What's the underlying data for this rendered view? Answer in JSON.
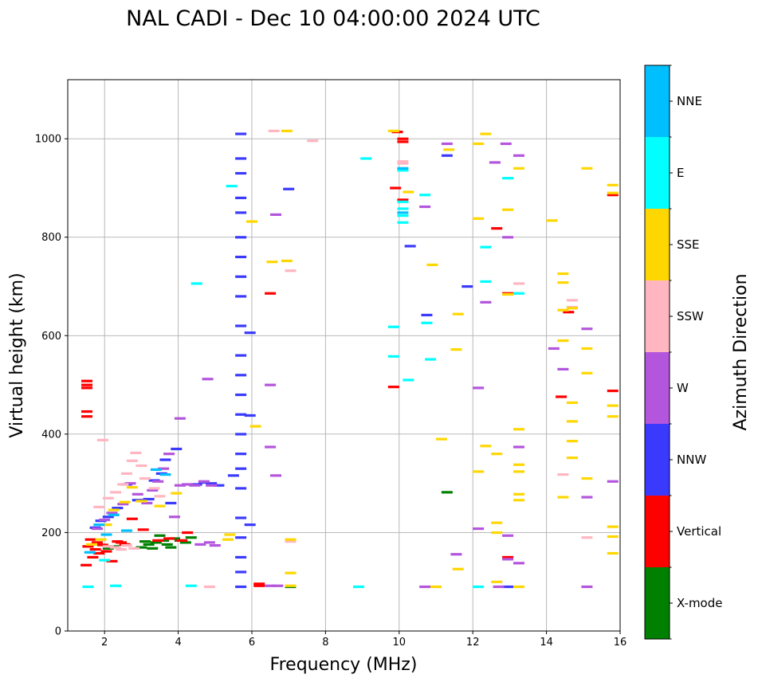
{
  "chart_data": {
    "type": "scatter",
    "title": "NAL CADI - Dec 10 04:00:00 2024 UTC",
    "xlabel": "Frequency (MHz)",
    "ylabel": "Virtual height (km)",
    "xlim": [
      1,
      16
    ],
    "ylim": [
      0,
      1120
    ],
    "xticks": [
      2,
      4,
      6,
      8,
      10,
      12,
      14,
      16
    ],
    "yticks": [
      0,
      200,
      400,
      600,
      800,
      1000
    ],
    "grid": true,
    "colorbar": {
      "label": "Azimuth Direction",
      "categories": [
        {
          "name": "X-mode",
          "color": "#008000"
        },
        {
          "name": "Vertical",
          "color": "#ff0000"
        },
        {
          "name": "NNW",
          "color": "#3a3aff"
        },
        {
          "name": "W",
          "color": "#b455dd"
        },
        {
          "name": "SSW",
          "color": "#ffb6c1"
        },
        {
          "name": "SSE",
          "color": "#ffd700"
        },
        {
          "name": "E",
          "color": "#00ffff"
        },
        {
          "name": "NNE",
          "color": "#00bfff"
        }
      ]
    },
    "series": [
      {
        "name": "X-mode",
        "points": [
          [
            2.1,
            168
          ],
          [
            2.25,
            172
          ],
          [
            3.0,
            170
          ],
          [
            3.1,
            182
          ],
          [
            3.2,
            176
          ],
          [
            3.3,
            168
          ],
          [
            3.4,
            180
          ],
          [
            3.5,
            194
          ],
          [
            3.6,
            184
          ],
          [
            3.7,
            176
          ],
          [
            3.8,
            170
          ],
          [
            3.9,
            188
          ],
          [
            4.05,
            184
          ],
          [
            4.2,
            180
          ],
          [
            4.35,
            190
          ],
          [
            11.3,
            282
          ],
          [
            7.05,
            90
          ]
        ]
      },
      {
        "name": "Vertical",
        "points": [
          [
            1.5,
            134
          ],
          [
            1.55,
            172
          ],
          [
            1.62,
            186
          ],
          [
            1.68,
            150
          ],
          [
            1.75,
            166
          ],
          [
            1.8,
            180
          ],
          [
            1.85,
            158
          ],
          [
            1.95,
            175
          ],
          [
            2.05,
            162
          ],
          [
            2.2,
            142
          ],
          [
            2.35,
            182
          ],
          [
            2.45,
            180
          ],
          [
            2.55,
            176
          ],
          [
            2.75,
            228
          ],
          [
            3.05,
            206
          ],
          [
            3.45,
            184
          ],
          [
            3.75,
            188
          ],
          [
            4.1,
            184
          ],
          [
            4.25,
            200
          ],
          [
            1.52,
            436
          ],
          [
            1.52,
            446
          ],
          [
            1.52,
            494
          ],
          [
            1.52,
            500
          ],
          [
            1.52,
            508
          ],
          [
            6.2,
            92
          ],
          [
            6.2,
            96
          ],
          [
            6.5,
            686
          ],
          [
            9.85,
            496
          ],
          [
            9.9,
            900
          ],
          [
            9.95,
            1014
          ],
          [
            10.1,
            1000
          ],
          [
            10.1,
            994
          ],
          [
            10.1,
            876
          ],
          [
            15.8,
            488
          ],
          [
            15.8,
            886
          ],
          [
            14.4,
            476
          ],
          [
            14.6,
            648
          ],
          [
            12.95,
            686
          ],
          [
            12.95,
            150
          ],
          [
            12.65,
            818
          ]
        ]
      },
      {
        "name": "NNW",
        "points": [
          [
            5.7,
            90
          ],
          [
            5.7,
            120
          ],
          [
            5.7,
            150
          ],
          [
            5.7,
            190
          ],
          [
            5.7,
            230
          ],
          [
            5.7,
            290
          ],
          [
            5.7,
            330
          ],
          [
            5.7,
            360
          ],
          [
            5.7,
            400
          ],
          [
            5.7,
            440
          ],
          [
            5.7,
            480
          ],
          [
            5.7,
            520
          ],
          [
            5.7,
            560
          ],
          [
            5.7,
            620
          ],
          [
            5.7,
            680
          ],
          [
            5.7,
            720
          ],
          [
            5.7,
            760
          ],
          [
            5.7,
            800
          ],
          [
            5.7,
            850
          ],
          [
            5.7,
            880
          ],
          [
            5.7,
            930
          ],
          [
            5.7,
            960
          ],
          [
            5.7,
            1010
          ],
          [
            5.5,
            316
          ],
          [
            5.95,
            216
          ],
          [
            5.95,
            438
          ],
          [
            5.95,
            606
          ],
          [
            7.0,
            898
          ],
          [
            10.3,
            782
          ],
          [
            10.75,
            642
          ],
          [
            11.3,
            966
          ],
          [
            11.85,
            700
          ],
          [
            12.95,
            90
          ],
          [
            1.75,
            210
          ],
          [
            1.9,
            224
          ],
          [
            2.1,
            232
          ],
          [
            2.35,
            250
          ],
          [
            2.6,
            298
          ],
          [
            2.9,
            266
          ],
          [
            3.2,
            268
          ],
          [
            3.35,
            306
          ],
          [
            3.55,
            320
          ],
          [
            3.65,
            348
          ],
          [
            3.8,
            260
          ],
          [
            3.95,
            370
          ],
          [
            4.5,
            298
          ],
          [
            4.7,
            302
          ],
          [
            4.9,
            300
          ],
          [
            5.1,
            296
          ]
        ]
      },
      {
        "name": "W",
        "points": [
          [
            1.8,
            208
          ],
          [
            2.0,
            226
          ],
          [
            2.2,
            240
          ],
          [
            2.5,
            258
          ],
          [
            2.7,
            300
          ],
          [
            2.9,
            278
          ],
          [
            3.15,
            260
          ],
          [
            3.3,
            286
          ],
          [
            3.45,
            304
          ],
          [
            3.6,
            330
          ],
          [
            3.75,
            360
          ],
          [
            3.9,
            232
          ],
          [
            4.05,
            296
          ],
          [
            4.25,
            298
          ],
          [
            4.45,
            296
          ],
          [
            4.7,
            304
          ],
          [
            4.9,
            296
          ],
          [
            4.6,
            176
          ],
          [
            4.85,
            180
          ],
          [
            5.0,
            174
          ],
          [
            4.05,
            432
          ],
          [
            4.8,
            512
          ],
          [
            6.5,
            500
          ],
          [
            6.5,
            374
          ],
          [
            6.65,
            316
          ],
          [
            6.65,
            846
          ],
          [
            6.5,
            92
          ],
          [
            6.7,
            92
          ],
          [
            10.7,
            90
          ],
          [
            10.7,
            862
          ],
          [
            11.3,
            990
          ],
          [
            11.55,
            156
          ],
          [
            12.15,
            208
          ],
          [
            12.15,
            494
          ],
          [
            12.35,
            668
          ],
          [
            12.6,
            952
          ],
          [
            12.7,
            90
          ],
          [
            12.9,
            990
          ],
          [
            12.95,
            800
          ],
          [
            12.95,
            194
          ],
          [
            12.95,
            146
          ],
          [
            13.25,
            374
          ],
          [
            13.25,
            138
          ],
          [
            13.25,
            966
          ],
          [
            14.2,
            574
          ],
          [
            14.45,
            532
          ],
          [
            15.1,
            614
          ],
          [
            15.1,
            272
          ],
          [
            15.1,
            90
          ],
          [
            15.8,
            304
          ]
        ]
      },
      {
        "name": "SSW",
        "points": [
          [
            1.85,
            252
          ],
          [
            2.1,
            270
          ],
          [
            2.3,
            282
          ],
          [
            2.5,
            298
          ],
          [
            2.6,
            320
          ],
          [
            2.75,
            346
          ],
          [
            2.85,
            362
          ],
          [
            3.0,
            336
          ],
          [
            3.1,
            310
          ],
          [
            3.35,
            290
          ],
          [
            3.5,
            274
          ],
          [
            2.1,
            172
          ],
          [
            2.3,
            170
          ],
          [
            2.45,
            166
          ],
          [
            2.6,
            174
          ],
          [
            2.8,
            168
          ],
          [
            1.95,
            388
          ],
          [
            6.6,
            1016
          ],
          [
            7.05,
            732
          ],
          [
            7.65,
            996
          ],
          [
            10.1,
            950
          ],
          [
            10.1,
            954
          ],
          [
            13.25,
            706
          ],
          [
            14.45,
            318
          ],
          [
            14.7,
            672
          ],
          [
            14.7,
            658
          ],
          [
            15.1,
            190
          ],
          [
            4.85,
            90
          ],
          [
            7.05,
            182
          ]
        ]
      },
      {
        "name": "SSE",
        "points": [
          [
            1.65,
            176
          ],
          [
            1.9,
            186
          ],
          [
            2.05,
            216
          ],
          [
            2.25,
            246
          ],
          [
            2.55,
            262
          ],
          [
            2.75,
            292
          ],
          [
            3.0,
            264
          ],
          [
            3.5,
            254
          ],
          [
            3.95,
            280
          ],
          [
            5.35,
            186
          ],
          [
            5.4,
            196
          ],
          [
            6.1,
            416
          ],
          [
            6.0,
            832
          ],
          [
            6.55,
            750
          ],
          [
            6.95,
            752
          ],
          [
            6.95,
            1016
          ],
          [
            7.05,
            186
          ],
          [
            7.05,
            118
          ],
          [
            7.05,
            92
          ],
          [
            9.85,
            1016
          ],
          [
            10.25,
            892
          ],
          [
            10.9,
            744
          ],
          [
            11.0,
            90
          ],
          [
            11.15,
            390
          ],
          [
            11.35,
            978
          ],
          [
            11.55,
            572
          ],
          [
            11.6,
            644
          ],
          [
            11.6,
            126
          ],
          [
            12.15,
            324
          ],
          [
            12.15,
            838
          ],
          [
            12.15,
            990
          ],
          [
            12.35,
            376
          ],
          [
            12.35,
            1010
          ],
          [
            12.65,
            360
          ],
          [
            12.65,
            220
          ],
          [
            12.65,
            200
          ],
          [
            12.65,
            100
          ],
          [
            12.95,
            856
          ],
          [
            12.95,
            684
          ],
          [
            13.25,
            940
          ],
          [
            13.25,
            410
          ],
          [
            13.25,
            338
          ],
          [
            13.25,
            324
          ],
          [
            13.25,
            278
          ],
          [
            13.25,
            266
          ],
          [
            13.25,
            90
          ],
          [
            14.15,
            834
          ],
          [
            14.45,
            726
          ],
          [
            14.45,
            708
          ],
          [
            14.45,
            652
          ],
          [
            14.45,
            590
          ],
          [
            14.45,
            272
          ],
          [
            14.7,
            656
          ],
          [
            14.7,
            464
          ],
          [
            14.7,
            426
          ],
          [
            14.7,
            386
          ],
          [
            14.7,
            352
          ],
          [
            15.1,
            940
          ],
          [
            15.1,
            574
          ],
          [
            15.1,
            524
          ],
          [
            15.1,
            310
          ],
          [
            15.8,
            906
          ],
          [
            15.8,
            890
          ],
          [
            15.8,
            458
          ],
          [
            15.8,
            436
          ],
          [
            15.8,
            212
          ],
          [
            15.8,
            192
          ],
          [
            15.8,
            158
          ]
        ]
      },
      {
        "name": "E",
        "points": [
          [
            1.55,
            90
          ],
          [
            2.0,
            144
          ],
          [
            2.3,
            92
          ],
          [
            4.35,
            92
          ],
          [
            4.5,
            706
          ],
          [
            5.45,
            904
          ],
          [
            8.9,
            90
          ],
          [
            9.1,
            960
          ],
          [
            9.85,
            558
          ],
          [
            9.85,
            618
          ],
          [
            10.1,
            830
          ],
          [
            10.1,
            844
          ],
          [
            10.1,
            858
          ],
          [
            10.1,
            872
          ],
          [
            10.1,
            936
          ],
          [
            10.25,
            510
          ],
          [
            10.7,
            886
          ],
          [
            10.75,
            626
          ],
          [
            10.85,
            552
          ],
          [
            12.15,
            90
          ],
          [
            12.35,
            780
          ],
          [
            12.35,
            710
          ],
          [
            12.95,
            920
          ],
          [
            13.25,
            686
          ]
        ]
      },
      {
        "name": "NNE",
        "points": [
          [
            1.6,
            160
          ],
          [
            1.85,
            216
          ],
          [
            2.05,
            196
          ],
          [
            2.25,
            236
          ],
          [
            2.6,
            204
          ],
          [
            3.4,
            328
          ],
          [
            3.65,
            318
          ],
          [
            10.1,
            940
          ],
          [
            10.1,
            850
          ]
        ]
      }
    ]
  }
}
